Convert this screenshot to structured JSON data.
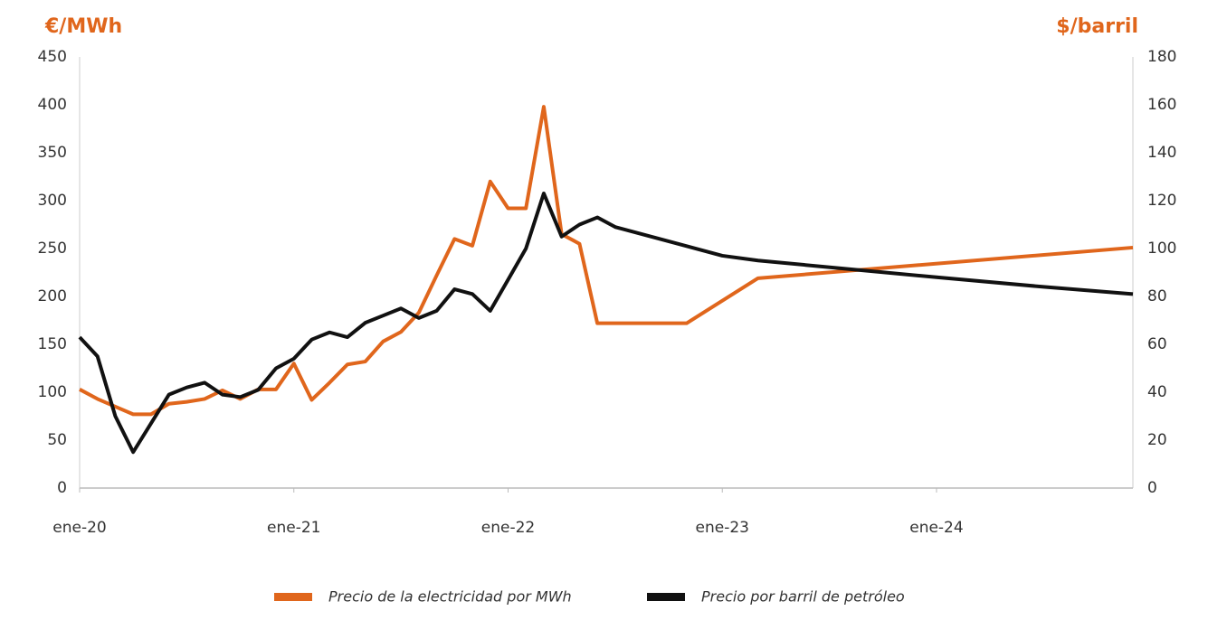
{
  "chart_data": {
    "type": "line",
    "y_label": "€/MWh",
    "y2_label": "$/barril",
    "xlim": [
      "2020-01",
      "2024-12"
    ],
    "xticks": [
      {
        "value": "2020-01",
        "label": "ene-20"
      },
      {
        "value": "2021-01",
        "label": "ene-21"
      },
      {
        "value": "2022-01",
        "label": "ene-22"
      },
      {
        "value": "2023-01",
        "label": "ene-23"
      },
      {
        "value": "2024-01",
        "label": "ene-24"
      }
    ],
    "ylim": [
      0,
      450
    ],
    "yticks": [
      0,
      50,
      100,
      150,
      200,
      250,
      300,
      350,
      400,
      450
    ],
    "y2lim": [
      0,
      180
    ],
    "y2ticks": [
      0,
      20,
      40,
      60,
      80,
      100,
      120,
      140,
      160,
      180
    ],
    "grid": false,
    "legend": "bottom",
    "series": [
      {
        "name": "Precio de la electricidad por MWh",
        "color": "#e0661c",
        "x": [
          "2020-01",
          "2020-02",
          "2020-03",
          "2020-04",
          "2020-05",
          "2020-06",
          "2020-07",
          "2020-08",
          "2020-09",
          "2020-10",
          "2020-11",
          "2020-12",
          "2021-01",
          "2021-02",
          "2021-03",
          "2021-04",
          "2021-05",
          "2021-06",
          "2021-07",
          "2021-08",
          "2021-09",
          "2021-10",
          "2021-11",
          "2021-12",
          "2022-01",
          "2022-02",
          "2022-03",
          "2022-04",
          "2022-05",
          "2022-06",
          "2022-11",
          "2023-03",
          "2024-12"
        ],
        "values": [
          103,
          93,
          85,
          77,
          77,
          88,
          90,
          93,
          102,
          93,
          103,
          103,
          130,
          92,
          110,
          129,
          132,
          153,
          163,
          183,
          222,
          260,
          253,
          320,
          292,
          292,
          398,
          265,
          255,
          172,
          172,
          219,
          251
        ]
      },
      {
        "name": "Precio por barril de petróleo",
        "color": "#111111",
        "axis": "y2",
        "x": [
          "2020-01",
          "2020-02",
          "2020-03",
          "2020-04",
          "2020-05",
          "2020-06",
          "2020-07",
          "2020-08",
          "2020-09",
          "2020-10",
          "2020-11",
          "2020-12",
          "2021-01",
          "2021-02",
          "2021-03",
          "2021-04",
          "2021-05",
          "2021-06",
          "2021-07",
          "2021-08",
          "2021-09",
          "2021-10",
          "2021-11",
          "2021-12",
          "2022-01",
          "2022-02",
          "2022-03",
          "2022-04",
          "2022-05",
          "2022-06",
          "2022-07",
          "2023-01",
          "2023-03",
          "2024-01",
          "2024-07",
          "2024-12"
        ],
        "values": [
          63,
          55,
          30,
          15,
          27,
          39,
          42,
          44,
          39,
          38,
          41,
          50,
          54,
          62,
          65,
          63,
          69,
          72,
          75,
          71,
          74,
          83,
          81,
          74,
          87,
          100,
          123,
          105,
          110,
          113,
          109,
          97,
          95,
          88,
          84,
          81
        ]
      }
    ]
  }
}
